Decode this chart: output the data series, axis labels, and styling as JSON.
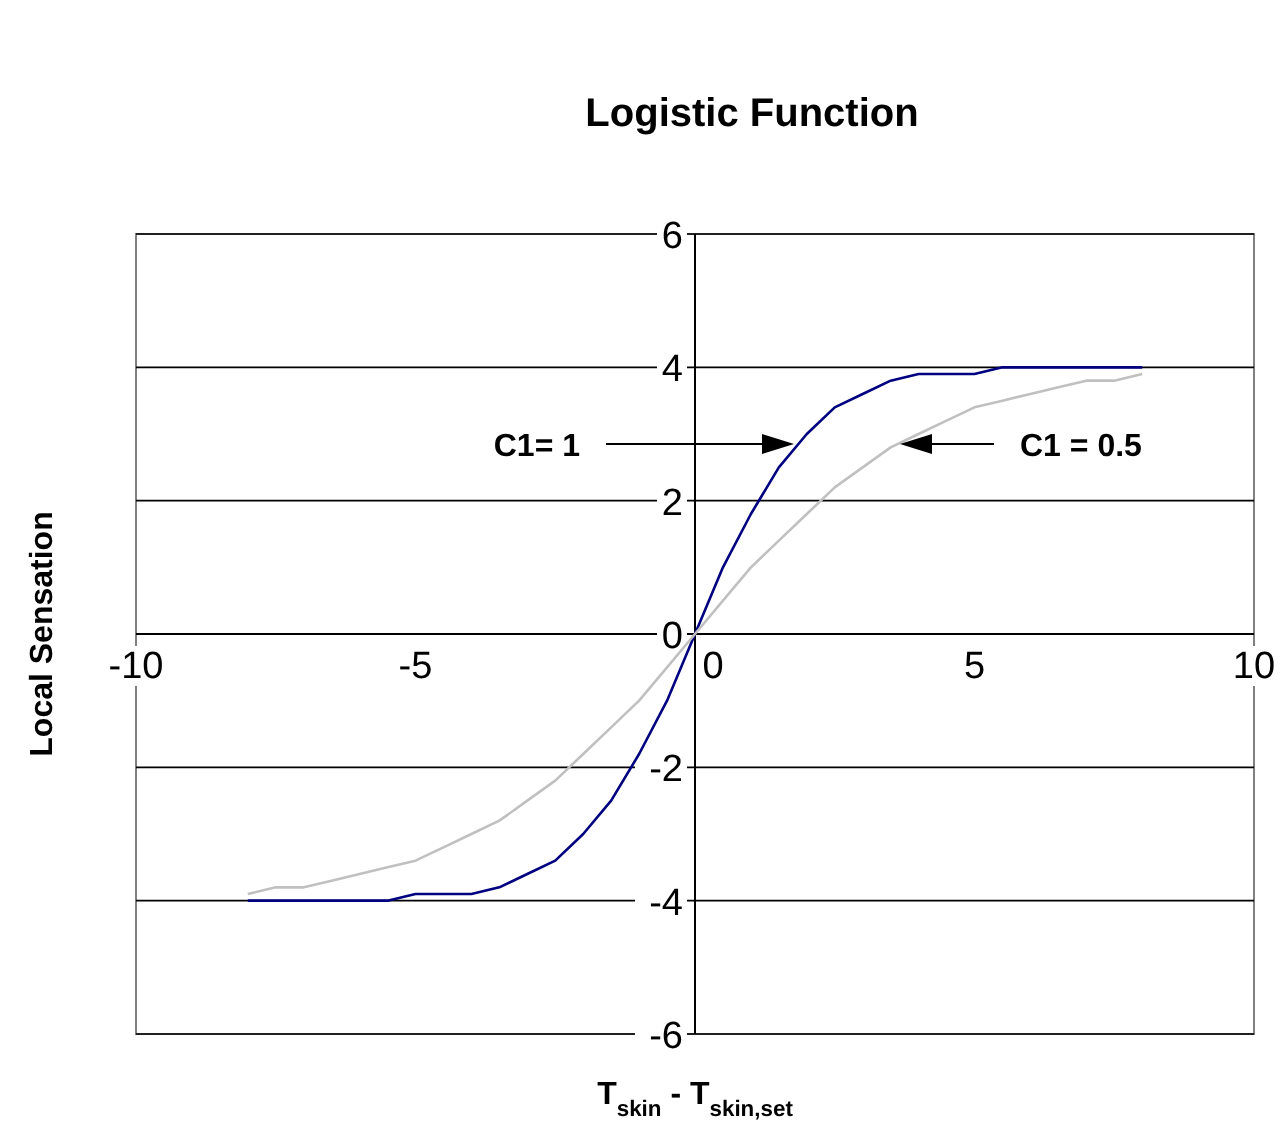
{
  "chart_data": {
    "type": "line",
    "title": "Logistic Function",
    "xlabel": "T$_{skin}$ - T$_{skin,set}$",
    "ylabel": "Local Sensation",
    "x": [
      -8,
      -7.5,
      -7,
      -6.5,
      -6,
      -5.5,
      -5,
      -4.5,
      -4,
      -3.5,
      -3,
      -2.5,
      -2,
      -1.5,
      -1,
      -0.5,
      0,
      0.5,
      1,
      1.5,
      2,
      2.5,
      3,
      3.5,
      4,
      4.5,
      5,
      5.5,
      6,
      6.5,
      7,
      7.5,
      8
    ],
    "series": [
      {
        "color": "#000080",
        "values": [
          -4,
          -4,
          -4,
          -4,
          -4,
          -4,
          -3.9,
          -3.9,
          -3.9,
          -3.8,
          -3.6,
          -3.4,
          -3,
          -2.5,
          -1.8,
          -1,
          0,
          1,
          1.8,
          2.5,
          3,
          3.4,
          3.6,
          3.8,
          3.9,
          3.9,
          3.9,
          4,
          4,
          4,
          4,
          4,
          4
        ]
      },
      {
        "color": "#c0c0c0",
        "values": [
          -3.9,
          -3.8,
          -3.8,
          -3.7,
          -3.6,
          -3.5,
          -3.4,
          -3.2,
          -3,
          -2.8,
          -2.5,
          -2.2,
          -1.8,
          -1.4,
          -1,
          -0.5,
          0,
          0.5,
          1,
          1.4,
          1.8,
          2.2,
          2.5,
          2.8,
          3,
          3.2,
          3.4,
          3.5,
          3.6,
          3.7,
          3.8,
          3.8,
          3.9
        ]
      }
    ],
    "annotations": [
      "C1= 1",
      "C1 = 0.5"
    ],
    "xlim": [
      -10,
      10
    ],
    "xticks": [
      -10,
      -5,
      0,
      5,
      10
    ],
    "ylim": [
      -6,
      6
    ],
    "yticks": [
      -6,
      -4,
      -2,
      0,
      2,
      4,
      6
    ],
    "grid": "y",
    "legend": false,
    "marker": "none",
    "line_style": "solid"
  }
}
